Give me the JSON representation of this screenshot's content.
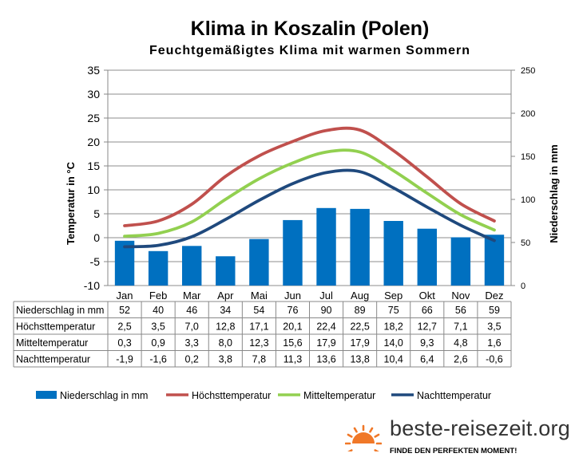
{
  "chart_data": {
    "type": "bar+line",
    "title": "Klima in Koszalin (Polen)",
    "subtitle": "Feuchtgemäßigtes Klima mit warmen Sommern",
    "y_left_label": "Temperatur in °C",
    "y_right_label": "Niederschlag in mm",
    "y_left_range": [
      -10,
      35
    ],
    "y_left_ticks": [
      35,
      30,
      25,
      20,
      15,
      10,
      5,
      0,
      -5,
      -10
    ],
    "y_right_range": [
      0,
      250
    ],
    "y_right_ticks": [
      250,
      200,
      150,
      100,
      50,
      0
    ],
    "categories": [
      "Jan",
      "Feb",
      "Mar",
      "Apr",
      "Mai",
      "Jun",
      "Jul",
      "Aug",
      "Sep",
      "Okt",
      "Nov",
      "Dez"
    ],
    "series": [
      {
        "name": "Niederschlag in mm",
        "kind": "bar",
        "axis": "right",
        "color": "#0070C0",
        "values": [
          52,
          40,
          46,
          34,
          54,
          76,
          90,
          89,
          75,
          66,
          56,
          59
        ],
        "labels": [
          "52",
          "40",
          "46",
          "34",
          "54",
          "76",
          "90",
          "89",
          "75",
          "66",
          "56",
          "59"
        ]
      },
      {
        "name": "Höchsttemperatur",
        "kind": "line",
        "axis": "left",
        "color": "#C0504D",
        "values": [
          2.5,
          3.5,
          7.0,
          12.8,
          17.1,
          20.1,
          22.4,
          22.5,
          18.2,
          12.7,
          7.1,
          3.5
        ],
        "labels": [
          "2,5",
          "3,5",
          "7,0",
          "12,8",
          "17,1",
          "20,1",
          "22,4",
          "22,5",
          "18,2",
          "12,7",
          "7,1",
          "3,5"
        ]
      },
      {
        "name": "Mitteltemperatur",
        "kind": "line",
        "axis": "left",
        "color": "#92D050",
        "values": [
          0.3,
          0.9,
          3.3,
          8.0,
          12.3,
          15.6,
          17.9,
          17.9,
          14.0,
          9.3,
          4.8,
          1.6
        ],
        "labels": [
          "0,3",
          "0,9",
          "3,3",
          "8,0",
          "12,3",
          "15,6",
          "17,9",
          "17,9",
          "14,0",
          "9,3",
          "4,8",
          "1,6"
        ]
      },
      {
        "name": "Nachttemperatur",
        "kind": "line",
        "axis": "left",
        "color": "#1F497D",
        "values": [
          -1.9,
          -1.6,
          0.2,
          3.8,
          7.8,
          11.3,
          13.6,
          13.8,
          10.4,
          6.4,
          2.6,
          -0.6
        ],
        "labels": [
          "-1,9",
          "-1,6",
          "0,2",
          "3,8",
          "7,8",
          "11,3",
          "13,6",
          "13,8",
          "10,4",
          "6,4",
          "2,6",
          "-0,6"
        ]
      }
    ],
    "legend_position": "bottom",
    "grid": true
  },
  "branding": {
    "site": "beste-reisezeit.org",
    "tagline": "FINDE DEN PERFEKTEN MOMENT!",
    "sun_color": "#F07828"
  }
}
